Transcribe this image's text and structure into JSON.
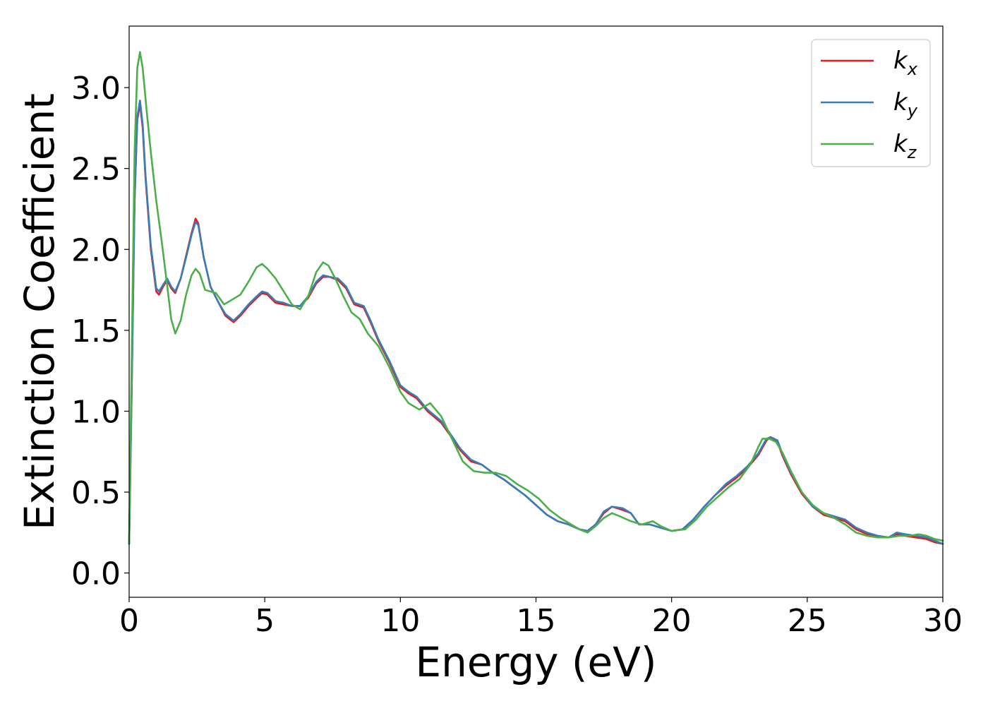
{
  "chart_data": {
    "type": "line",
    "title": "",
    "xlabel": "Energy (eV)",
    "ylabel": "Extinction Coefficient",
    "xlim": [
      0,
      30
    ],
    "ylim": [
      -0.15,
      3.38
    ],
    "x_ticks": [
      0,
      5,
      10,
      15,
      20,
      25,
      30
    ],
    "y_ticks": [
      0.0,
      0.5,
      1.0,
      1.5,
      2.0,
      2.5,
      3.0
    ],
    "x_tick_labels": [
      "0",
      "5",
      "10",
      "15",
      "20",
      "25",
      "30"
    ],
    "y_tick_labels": [
      "0.0",
      "0.5",
      "1.0",
      "1.5",
      "2.0",
      "2.5",
      "3.0"
    ],
    "grid": false,
    "legend_position": "top-right",
    "series": [
      {
        "name": "k_x",
        "legend_base": "k",
        "legend_sub": "x",
        "color": "#e41a1c",
        "points": [
          [
            0.0,
            0.18
          ],
          [
            0.1,
            1.2
          ],
          [
            0.2,
            2.3
          ],
          [
            0.3,
            2.8
          ],
          [
            0.4,
            2.9
          ],
          [
            0.5,
            2.75
          ],
          [
            0.6,
            2.45
          ],
          [
            0.8,
            2.0
          ],
          [
            1.0,
            1.74
          ],
          [
            1.1,
            1.72
          ],
          [
            1.25,
            1.77
          ],
          [
            1.4,
            1.81
          ],
          [
            1.55,
            1.76
          ],
          [
            1.7,
            1.73
          ],
          [
            1.9,
            1.82
          ],
          [
            2.1,
            1.96
          ],
          [
            2.3,
            2.1
          ],
          [
            2.45,
            2.19
          ],
          [
            2.55,
            2.16
          ],
          [
            2.75,
            1.95
          ],
          [
            3.0,
            1.77
          ],
          [
            3.3,
            1.67
          ],
          [
            3.55,
            1.59
          ],
          [
            3.85,
            1.55
          ],
          [
            4.1,
            1.59
          ],
          [
            4.4,
            1.65
          ],
          [
            4.7,
            1.7
          ],
          [
            4.9,
            1.73
          ],
          [
            5.1,
            1.72
          ],
          [
            5.4,
            1.67
          ],
          [
            5.7,
            1.66
          ],
          [
            6.0,
            1.65
          ],
          [
            6.3,
            1.65
          ],
          [
            6.6,
            1.7
          ],
          [
            6.9,
            1.79
          ],
          [
            7.15,
            1.83
          ],
          [
            7.4,
            1.83
          ],
          [
            7.7,
            1.81
          ],
          [
            8.0,
            1.76
          ],
          [
            8.3,
            1.66
          ],
          [
            8.65,
            1.64
          ],
          [
            8.9,
            1.55
          ],
          [
            9.2,
            1.43
          ],
          [
            9.6,
            1.3
          ],
          [
            10.0,
            1.15
          ],
          [
            10.3,
            1.11
          ],
          [
            10.6,
            1.08
          ],
          [
            11.0,
            1.0
          ],
          [
            11.5,
            0.93
          ],
          [
            11.8,
            0.86
          ],
          [
            12.2,
            0.76
          ],
          [
            12.6,
            0.69
          ],
          [
            13.0,
            0.67
          ],
          [
            13.4,
            0.62
          ],
          [
            13.8,
            0.58
          ],
          [
            14.2,
            0.53
          ],
          [
            14.6,
            0.48
          ],
          [
            15.0,
            0.42
          ],
          [
            15.4,
            0.36
          ],
          [
            15.8,
            0.32
          ],
          [
            16.2,
            0.3
          ],
          [
            16.6,
            0.27
          ],
          [
            16.9,
            0.26
          ],
          [
            17.2,
            0.3
          ],
          [
            17.5,
            0.37
          ],
          [
            17.8,
            0.41
          ],
          [
            18.2,
            0.39
          ],
          [
            18.5,
            0.37
          ],
          [
            18.8,
            0.3
          ],
          [
            19.2,
            0.3
          ],
          [
            19.6,
            0.28
          ],
          [
            20.0,
            0.26
          ],
          [
            20.4,
            0.27
          ],
          [
            20.8,
            0.33
          ],
          [
            21.2,
            0.41
          ],
          [
            21.6,
            0.48
          ],
          [
            22.0,
            0.54
          ],
          [
            22.4,
            0.59
          ],
          [
            22.8,
            0.65
          ],
          [
            23.2,
            0.73
          ],
          [
            23.5,
            0.82
          ],
          [
            23.65,
            0.84
          ],
          [
            23.9,
            0.81
          ],
          [
            24.1,
            0.72
          ],
          [
            24.4,
            0.61
          ],
          [
            24.8,
            0.49
          ],
          [
            25.2,
            0.41
          ],
          [
            25.6,
            0.36
          ],
          [
            26.0,
            0.34
          ],
          [
            26.4,
            0.32
          ],
          [
            26.8,
            0.27
          ],
          [
            27.2,
            0.24
          ],
          [
            27.6,
            0.22
          ],
          [
            28.0,
            0.22
          ],
          [
            28.3,
            0.24
          ],
          [
            28.6,
            0.23
          ],
          [
            29.0,
            0.22
          ],
          [
            29.4,
            0.21
          ],
          [
            29.7,
            0.19
          ],
          [
            30.0,
            0.18
          ]
        ]
      },
      {
        "name": "k_y",
        "legend_base": "k",
        "legend_sub": "y",
        "color": "#377eb8",
        "points": [
          [
            0.0,
            0.18
          ],
          [
            0.1,
            1.2
          ],
          [
            0.2,
            2.3
          ],
          [
            0.3,
            2.82
          ],
          [
            0.4,
            2.92
          ],
          [
            0.5,
            2.77
          ],
          [
            0.6,
            2.47
          ],
          [
            0.8,
            2.02
          ],
          [
            1.0,
            1.76
          ],
          [
            1.1,
            1.74
          ],
          [
            1.25,
            1.78
          ],
          [
            1.4,
            1.82
          ],
          [
            1.55,
            1.77
          ],
          [
            1.7,
            1.74
          ],
          [
            1.9,
            1.82
          ],
          [
            2.1,
            1.95
          ],
          [
            2.3,
            2.09
          ],
          [
            2.45,
            2.17
          ],
          [
            2.55,
            2.15
          ],
          [
            2.75,
            1.95
          ],
          [
            3.0,
            1.77
          ],
          [
            3.3,
            1.67
          ],
          [
            3.55,
            1.6
          ],
          [
            3.85,
            1.56
          ],
          [
            4.1,
            1.6
          ],
          [
            4.4,
            1.66
          ],
          [
            4.7,
            1.71
          ],
          [
            4.9,
            1.74
          ],
          [
            5.1,
            1.73
          ],
          [
            5.4,
            1.68
          ],
          [
            5.7,
            1.67
          ],
          [
            6.0,
            1.65
          ],
          [
            6.3,
            1.65
          ],
          [
            6.6,
            1.71
          ],
          [
            6.9,
            1.8
          ],
          [
            7.15,
            1.84
          ],
          [
            7.4,
            1.83
          ],
          [
            7.7,
            1.82
          ],
          [
            8.0,
            1.77
          ],
          [
            8.3,
            1.67
          ],
          [
            8.65,
            1.65
          ],
          [
            8.9,
            1.56
          ],
          [
            9.2,
            1.44
          ],
          [
            9.6,
            1.31
          ],
          [
            10.0,
            1.16
          ],
          [
            10.3,
            1.12
          ],
          [
            10.6,
            1.09
          ],
          [
            11.0,
            1.01
          ],
          [
            11.5,
            0.94
          ],
          [
            11.8,
            0.87
          ],
          [
            12.2,
            0.77
          ],
          [
            12.6,
            0.7
          ],
          [
            13.0,
            0.67
          ],
          [
            13.4,
            0.62
          ],
          [
            13.8,
            0.58
          ],
          [
            14.2,
            0.53
          ],
          [
            14.6,
            0.48
          ],
          [
            15.0,
            0.42
          ],
          [
            15.4,
            0.36
          ],
          [
            15.8,
            0.32
          ],
          [
            16.2,
            0.3
          ],
          [
            16.6,
            0.27
          ],
          [
            16.9,
            0.26
          ],
          [
            17.2,
            0.3
          ],
          [
            17.5,
            0.38
          ],
          [
            17.8,
            0.41
          ],
          [
            18.2,
            0.4
          ],
          [
            18.5,
            0.37
          ],
          [
            18.8,
            0.3
          ],
          [
            19.2,
            0.3
          ],
          [
            19.6,
            0.28
          ],
          [
            20.0,
            0.26
          ],
          [
            20.4,
            0.27
          ],
          [
            20.8,
            0.33
          ],
          [
            21.2,
            0.41
          ],
          [
            21.6,
            0.48
          ],
          [
            22.0,
            0.55
          ],
          [
            22.4,
            0.6
          ],
          [
            22.8,
            0.66
          ],
          [
            23.2,
            0.74
          ],
          [
            23.5,
            0.83
          ],
          [
            23.65,
            0.84
          ],
          [
            23.9,
            0.82
          ],
          [
            24.1,
            0.73
          ],
          [
            24.4,
            0.62
          ],
          [
            24.8,
            0.5
          ],
          [
            25.2,
            0.41
          ],
          [
            25.6,
            0.37
          ],
          [
            26.0,
            0.35
          ],
          [
            26.4,
            0.33
          ],
          [
            26.8,
            0.28
          ],
          [
            27.2,
            0.25
          ],
          [
            27.6,
            0.23
          ],
          [
            28.0,
            0.22
          ],
          [
            28.3,
            0.25
          ],
          [
            28.6,
            0.24
          ],
          [
            29.0,
            0.23
          ],
          [
            29.4,
            0.22
          ],
          [
            29.7,
            0.2
          ],
          [
            30.0,
            0.18
          ]
        ]
      },
      {
        "name": "k_z",
        "legend_base": "k",
        "legend_sub": "z",
        "color": "#4daf4a",
        "points": [
          [
            0.0,
            0.18
          ],
          [
            0.1,
            1.4
          ],
          [
            0.2,
            2.6
          ],
          [
            0.3,
            3.12
          ],
          [
            0.4,
            3.22
          ],
          [
            0.5,
            3.12
          ],
          [
            0.65,
            2.85
          ],
          [
            0.8,
            2.6
          ],
          [
            1.0,
            2.3
          ],
          [
            1.2,
            2.05
          ],
          [
            1.4,
            1.78
          ],
          [
            1.55,
            1.57
          ],
          [
            1.7,
            1.48
          ],
          [
            1.9,
            1.56
          ],
          [
            2.1,
            1.72
          ],
          [
            2.3,
            1.84
          ],
          [
            2.45,
            1.88
          ],
          [
            2.6,
            1.85
          ],
          [
            2.8,
            1.75
          ],
          [
            3.0,
            1.74
          ],
          [
            3.2,
            1.73
          ],
          [
            3.5,
            1.66
          ],
          [
            3.8,
            1.69
          ],
          [
            4.1,
            1.72
          ],
          [
            4.4,
            1.8
          ],
          [
            4.7,
            1.89
          ],
          [
            4.9,
            1.91
          ],
          [
            5.1,
            1.88
          ],
          [
            5.4,
            1.82
          ],
          [
            5.7,
            1.74
          ],
          [
            6.0,
            1.66
          ],
          [
            6.3,
            1.63
          ],
          [
            6.6,
            1.71
          ],
          [
            6.9,
            1.86
          ],
          [
            7.15,
            1.92
          ],
          [
            7.35,
            1.9
          ],
          [
            7.6,
            1.82
          ],
          [
            7.9,
            1.71
          ],
          [
            8.2,
            1.61
          ],
          [
            8.5,
            1.57
          ],
          [
            8.8,
            1.48
          ],
          [
            9.2,
            1.4
          ],
          [
            9.6,
            1.27
          ],
          [
            10.0,
            1.12
          ],
          [
            10.3,
            1.05
          ],
          [
            10.7,
            1.01
          ],
          [
            11.1,
            1.05
          ],
          [
            11.5,
            0.97
          ],
          [
            11.9,
            0.83
          ],
          [
            12.3,
            0.69
          ],
          [
            12.7,
            0.63
          ],
          [
            13.1,
            0.62
          ],
          [
            13.5,
            0.62
          ],
          [
            13.9,
            0.6
          ],
          [
            14.3,
            0.55
          ],
          [
            14.7,
            0.51
          ],
          [
            15.1,
            0.46
          ],
          [
            15.5,
            0.39
          ],
          [
            15.9,
            0.34
          ],
          [
            16.3,
            0.3
          ],
          [
            16.6,
            0.27
          ],
          [
            16.9,
            0.25
          ],
          [
            17.2,
            0.29
          ],
          [
            17.5,
            0.34
          ],
          [
            17.8,
            0.37
          ],
          [
            18.1,
            0.35
          ],
          [
            18.5,
            0.32
          ],
          [
            18.9,
            0.3
          ],
          [
            19.3,
            0.32
          ],
          [
            19.6,
            0.29
          ],
          [
            20.0,
            0.26
          ],
          [
            20.5,
            0.27
          ],
          [
            20.9,
            0.33
          ],
          [
            21.3,
            0.41
          ],
          [
            21.7,
            0.47
          ],
          [
            22.1,
            0.53
          ],
          [
            22.5,
            0.58
          ],
          [
            22.9,
            0.67
          ],
          [
            23.2,
            0.78
          ],
          [
            23.35,
            0.83
          ],
          [
            23.6,
            0.83
          ],
          [
            23.85,
            0.81
          ],
          [
            24.1,
            0.74
          ],
          [
            24.4,
            0.63
          ],
          [
            24.8,
            0.5
          ],
          [
            25.2,
            0.42
          ],
          [
            25.6,
            0.37
          ],
          [
            26.0,
            0.34
          ],
          [
            26.4,
            0.3
          ],
          [
            26.8,
            0.25
          ],
          [
            27.2,
            0.23
          ],
          [
            27.6,
            0.22
          ],
          [
            28.0,
            0.22
          ],
          [
            28.4,
            0.23
          ],
          [
            28.8,
            0.23
          ],
          [
            29.1,
            0.24
          ],
          [
            29.4,
            0.23
          ],
          [
            29.7,
            0.21
          ],
          [
            30.0,
            0.2
          ]
        ]
      }
    ]
  }
}
